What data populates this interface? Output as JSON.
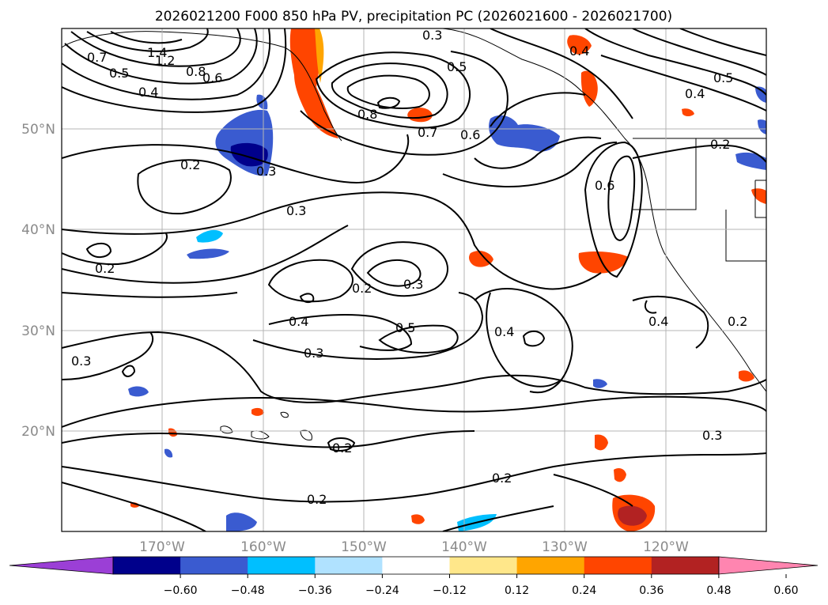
{
  "title": "2026021200 F000 850 hPa PV, precipitation PC (2026021600 - 2026021700)",
  "latitudes": [
    "50°N",
    "40°N",
    "30°N",
    "20°N"
  ],
  "longitudes": [
    "170°W",
    "160°W",
    "150°W",
    "140°W",
    "130°W",
    "120°W"
  ],
  "colorbar": {
    "ticks": [
      "−0.60",
      "−0.48",
      "−0.36",
      "−0.24",
      "−0.12",
      "0.12",
      "0.24",
      "0.36",
      "0.48",
      "0.60"
    ],
    "colors": [
      "#9b3fd6",
      "#00008b",
      "#3a5bd0",
      "#00bfff",
      "#b0e2ff",
      "#ffffff",
      "#ffe78a",
      "#ffa500",
      "#ff4500",
      "#b22222",
      "#ff85b0"
    ]
  },
  "contour_labels": [
    "1.4",
    "1.2",
    "0.7",
    "0.5",
    "0.4",
    "0.8",
    "0.6",
    "0.3",
    "0.5",
    "0.2",
    "0.3",
    "0.7",
    "0.6",
    "0.8",
    "0.4",
    "0.5",
    "0.4",
    "0.6",
    "0.3",
    "0.2",
    "0.2",
    "0.3",
    "0.5",
    "0.4",
    "0.4",
    "0.3",
    "0.4",
    "0.3",
    "0.2",
    "0.2",
    "0.2",
    "0.3",
    "0.2",
    "0.2"
  ]
}
